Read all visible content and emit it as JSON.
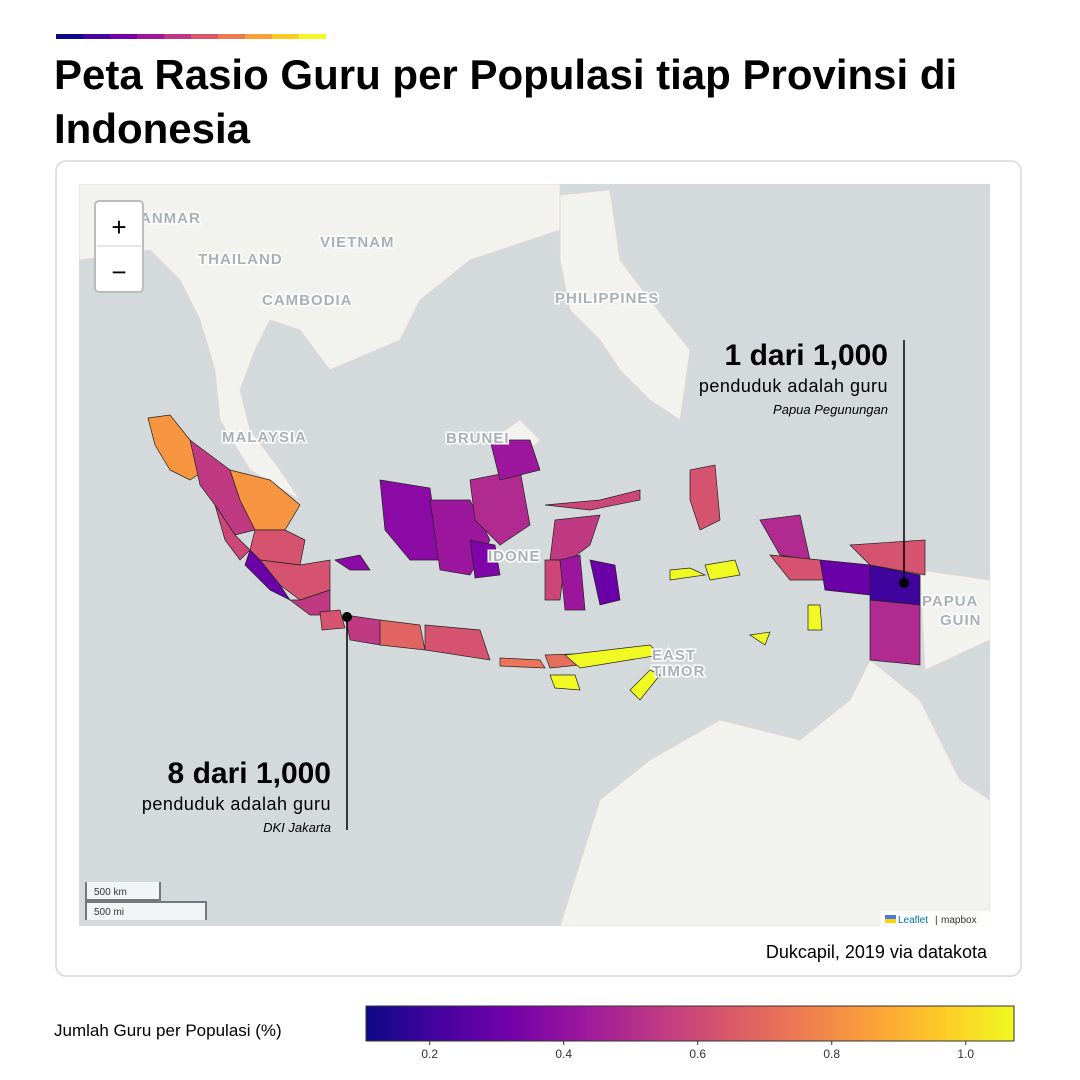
{
  "header": {
    "title": "Peta Rasio Guru per Populasi tiap Provinsi di Indonesia"
  },
  "map": {
    "labels": [
      "ANMAR",
      "VIETNAM",
      "THAILAND",
      "CAMBODIA",
      "PHILIPPINES",
      "MALAYSIA",
      "BRUNEI",
      "IDONE",
      "EAST",
      "TIMOR",
      "PAPUA",
      "GUIN"
    ],
    "zoom_in": "+",
    "zoom_out": "−",
    "scale": [
      "500 km",
      "500 mi"
    ],
    "attribution": {
      "leaflet": "Leaflet",
      "separator": "|",
      "provider": "mapbox"
    }
  },
  "annotations": [
    {
      "headline": "1 dari 1,000",
      "text": "penduduk adalah guru",
      "place": "Papua Pegunungan"
    },
    {
      "headline": "8 dari 1,000",
      "text": "penduduk adalah guru",
      "place": "DKI Jakarta"
    }
  ],
  "source": "Dukcapil, 2019 via datakota",
  "legend": {
    "title": "Jumlah Guru per Populasi (%)",
    "range": [
      0.105,
      1.072
    ],
    "ticks": [
      0.2,
      0.4,
      0.6,
      0.8,
      {
        "value": 1,
        "label": "1.0"
      }
    ],
    "colors": [
      "#0d0887",
      "#46039f",
      "#7201a8",
      "#9c179e",
      "#bd3786",
      "#d8576b",
      "#ed7953",
      "#fb9f3a",
      "#fdca26",
      "#f0f921"
    ]
  }
}
